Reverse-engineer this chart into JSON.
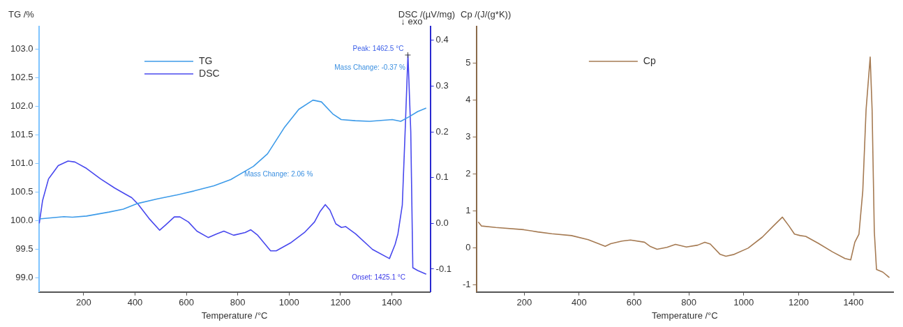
{
  "chart_data": [
    {
      "type": "line",
      "xlabel": "Temperature /°C",
      "ylabel": "TG /%",
      "y2label": "DSC /(µV/mg)",
      "legend": "top left",
      "grid": false,
      "xlim": [
        25,
        1550
      ],
      "xticks": [
        200,
        400,
        600,
        800,
        1000,
        1200,
        1400
      ],
      "ylim": [
        98.75,
        103.4
      ],
      "yticks": [
        {
          "value": 99,
          "label": "99.0"
        },
        99.5,
        {
          "value": 100,
          "label": "100.0"
        },
        100.5,
        {
          "value": 101,
          "label": "101.0"
        },
        101.5,
        {
          "value": 102,
          "label": "102.0"
        },
        102.5,
        {
          "value": 103,
          "label": "103.0"
        }
      ],
      "y2lim": [
        -0.15,
        0.43
      ],
      "y2ticks": [
        -0.1,
        {
          "value": 0,
          "label": "0.0"
        },
        0.1,
        0.2,
        0.3,
        0.4
      ],
      "annotations": [
        "↓ exo",
        {
          "text": "Peak: 1462.5 °C",
          "x": 1462.5,
          "y": 102.9
        },
        "Mass Change: -0.37 %",
        "Mass Change: 2.06 %",
        "Onset: 1425.1 °C"
      ],
      "series": [
        {
          "name": "TG",
          "color": "#3d9be9",
          "x": [
            27,
            123,
            156,
            211,
            299,
            354,
            410,
            487,
            564,
            630,
            707,
            773,
            861,
            916,
            983,
            1038,
            1093,
            1126,
            1170,
            1203,
            1258,
            1314,
            1402,
            1435,
            1468,
            1501,
            1534
          ],
          "values": [
            100.03,
            100.07,
            100.06,
            100.08,
            100.15,
            100.2,
            100.3,
            100.38,
            100.45,
            100.52,
            100.61,
            100.72,
            100.95,
            101.17,
            101.64,
            101.95,
            102.11,
            102.08,
            101.87,
            101.77,
            101.75,
            101.74,
            101.77,
            101.74,
            101.82,
            101.91,
            101.97
          ]
        },
        {
          "name": "DSC",
          "color": "#4848ee",
          "axis": "y2",
          "x": [
            27,
            40,
            63,
            101,
            139,
            166,
            211,
            266,
            321,
            365,
            387,
            410,
            454,
            496,
            520,
            553,
            575,
            608,
            641,
            685,
            718,
            746,
            784,
            829,
            851,
            878,
            928,
            950,
            1005,
            1060,
            1099,
            1121,
            1141,
            1159,
            1182,
            1204,
            1220,
            1259,
            1325,
            1391,
            1413,
            1424,
            1441,
            1452,
            1463,
            1474,
            1482,
            1501,
            1534
          ],
          "values": [
            0.0,
            0.05,
            0.097,
            0.126,
            0.136,
            0.134,
            0.12,
            0.097,
            0.077,
            0.063,
            0.056,
            0.043,
            0.011,
            -0.015,
            -0.003,
            0.014,
            0.014,
            0.003,
            -0.017,
            -0.031,
            -0.023,
            -0.017,
            -0.026,
            -0.02,
            -0.014,
            -0.026,
            -0.06,
            -0.06,
            -0.043,
            -0.02,
            0.003,
            0.026,
            0.041,
            0.029,
            -0.001,
            -0.009,
            -0.007,
            -0.023,
            -0.057,
            -0.077,
            -0.046,
            -0.023,
            0.04,
            0.2,
            0.369,
            0.2,
            -0.097,
            -0.103,
            -0.111
          ]
        }
      ]
    },
    {
      "type": "line",
      "xlabel": "Temperature /°C",
      "ylabel": "Cp /(J/(g*K))",
      "legend": "top left",
      "grid": false,
      "xlim": [
        25,
        1545
      ],
      "xticks": [
        200,
        400,
        600,
        800,
        1000,
        1200,
        1400
      ],
      "ylim": [
        -1.2,
        6
      ],
      "yticks": [
        -1,
        0,
        1,
        2,
        3,
        4,
        5
      ],
      "series": [
        {
          "name": "Cp",
          "color": "#a57a52",
          "x": [
            32,
            44,
            96,
            198,
            249,
            300,
            372,
            433,
            495,
            515,
            556,
            587,
            638,
            658,
            684,
            720,
            751,
            791,
            832,
            858,
            878,
            914,
            935,
            965,
            1016,
            1068,
            1108,
            1141,
            1165,
            1185,
            1206,
            1226,
            1272,
            1323,
            1369,
            1390,
            1405,
            1420,
            1434,
            1446,
            1461,
            1468,
            1476,
            1484,
            1507,
            1531
          ],
          "values": [
            0.7,
            0.59,
            0.55,
            0.49,
            0.43,
            0.38,
            0.33,
            0.22,
            0.04,
            0.11,
            0.18,
            0.21,
            0.15,
            0.04,
            -0.04,
            0.01,
            0.09,
            0.02,
            0.07,
            0.15,
            0.1,
            -0.18,
            -0.23,
            -0.18,
            -0.01,
            0.29,
            0.59,
            0.83,
            0.59,
            0.37,
            0.33,
            0.31,
            0.12,
            -0.11,
            -0.29,
            -0.33,
            0.15,
            0.37,
            1.54,
            3.74,
            5.17,
            3.74,
            0.44,
            -0.59,
            -0.66,
            -0.81
          ]
        }
      ]
    }
  ]
}
